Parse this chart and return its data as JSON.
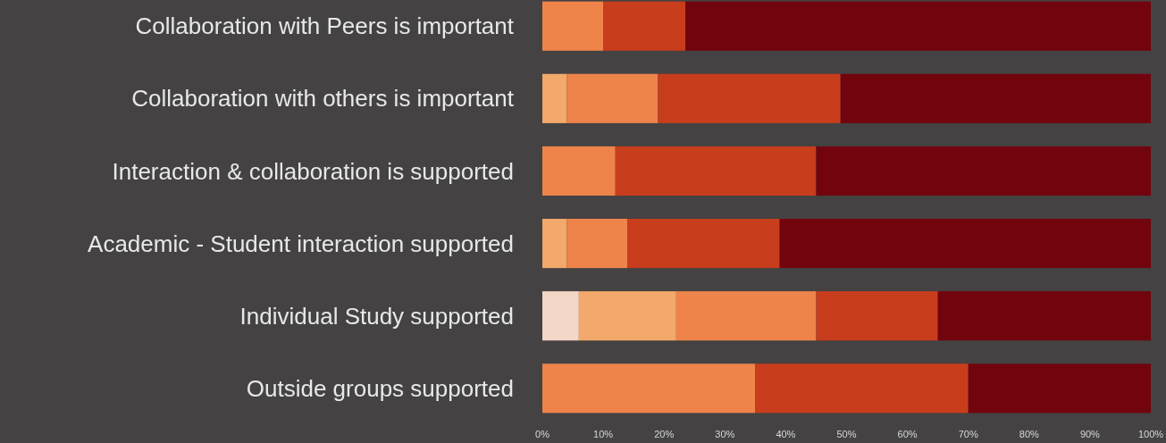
{
  "chart_data": {
    "type": "bar",
    "orientation": "horizontal",
    "stacked": true,
    "categories": [
      "Collaboration with Peers is important",
      "Collaboration with others is important",
      "Interaction & collaboration is supported",
      "Academic - Student interaction supported",
      "Individual Study supported",
      "Outside groups supported"
    ],
    "series": [
      {
        "color": "#f2d6c6",
        "values": [
          0,
          0,
          0,
          0,
          6,
          0
        ]
      },
      {
        "color": "#f2a96b",
        "values": [
          0,
          4,
          0,
          4,
          16,
          0
        ]
      },
      {
        "color": "#ee844a",
        "values": [
          10,
          15,
          12,
          10,
          23,
          35
        ]
      },
      {
        "color": "#c83d1c",
        "values": [
          13.5,
          30,
          33,
          25,
          20,
          35
        ]
      },
      {
        "color": "#72040e",
        "values": [
          76.5,
          51,
          55,
          61,
          35,
          30
        ]
      }
    ],
    "xlim": [
      0,
      100
    ],
    "xticks": [
      {
        "value": 0,
        "label": "0%"
      },
      {
        "value": 10,
        "label": "10%"
      },
      {
        "value": 20,
        "label": "20%"
      },
      {
        "value": 30,
        "label": "30%"
      },
      {
        "value": 40,
        "label": "40%"
      },
      {
        "value": 50,
        "label": "50%"
      },
      {
        "value": 60,
        "label": "60%"
      },
      {
        "value": 70,
        "label": "70%"
      },
      {
        "value": 80,
        "label": "80%"
      },
      {
        "value": 90,
        "label": "90%"
      },
      {
        "value": 100,
        "label": "100%"
      }
    ],
    "grid": false
  }
}
